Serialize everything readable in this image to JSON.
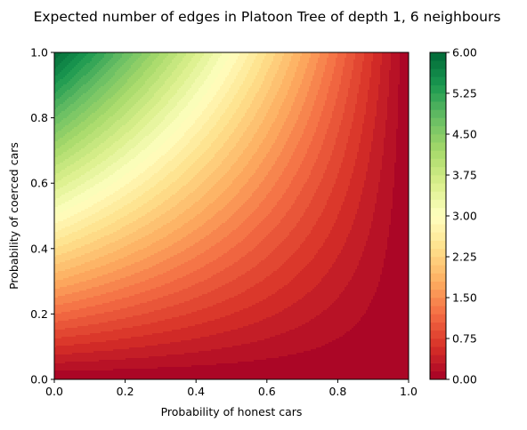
{
  "chart_data": {
    "type": "contourf",
    "title": "Expected number of edges in Platoon Tree of depth 1, 6 neighbours",
    "xlabel": "Probability of honest cars",
    "ylabel": "Probability of coerced cars",
    "xlim": [
      0.0,
      1.0
    ],
    "ylim": [
      0.0,
      1.0
    ],
    "x_ticks": [
      0.0,
      0.2,
      0.4,
      0.6,
      0.8,
      1.0
    ],
    "y_ticks": [
      0.0,
      0.2,
      0.4,
      0.6,
      0.8,
      1.0
    ],
    "x_tick_labels": [
      "0.0",
      "0.2",
      "0.4",
      "0.6",
      "0.8",
      "1.0"
    ],
    "y_tick_labels": [
      "0.0",
      "0.2",
      "0.4",
      "0.6",
      "0.8",
      "1.0"
    ],
    "colormap": "RdYlGn",
    "value_range": [
      0.0,
      6.0
    ],
    "levels": 40,
    "function": "expected_edges = 6 * (1 - honest) * coerced",
    "grid": false,
    "colorbar": {
      "ticks": [
        0.0,
        0.75,
        1.5,
        2.25,
        3.0,
        3.75,
        4.5,
        5.25,
        6.0
      ],
      "tick_labels": [
        "0.00",
        "0.75",
        "1.50",
        "2.25",
        "3.00",
        "3.75",
        "4.50",
        "5.25",
        "6.00"
      ]
    },
    "colormap_stops": [
      [
        0.0,
        "#a50026"
      ],
      [
        0.1,
        "#d73027"
      ],
      [
        0.2,
        "#f46d43"
      ],
      [
        0.3,
        "#fdae61"
      ],
      [
        0.4,
        "#fee08b"
      ],
      [
        0.5,
        "#ffffbf"
      ],
      [
        0.6,
        "#d9ef8b"
      ],
      [
        0.7,
        "#a6d96a"
      ],
      [
        0.8,
        "#66bd63"
      ],
      [
        0.9,
        "#1a9850"
      ],
      [
        1.0,
        "#006837"
      ]
    ]
  }
}
